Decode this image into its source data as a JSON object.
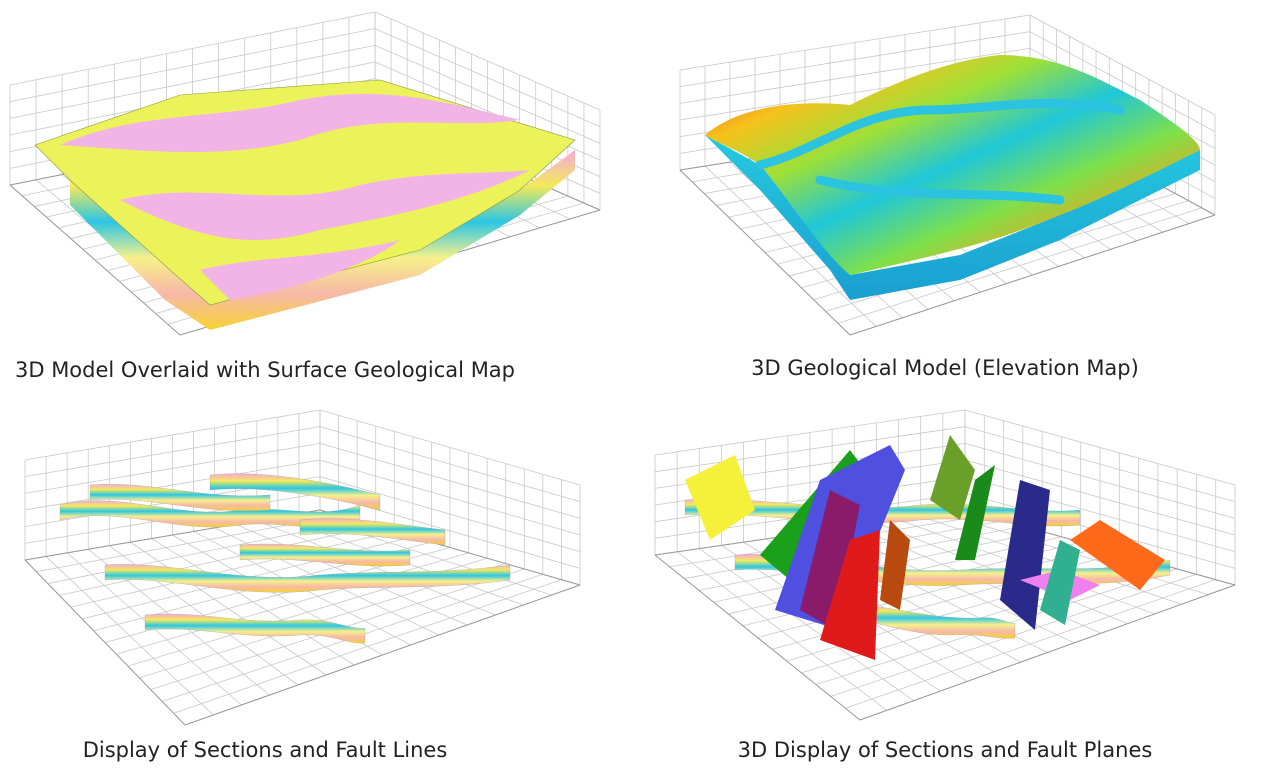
{
  "panels": [
    {
      "caption": "3D Model Overlaid with Surface Geological Map"
    },
    {
      "caption": "3D Geological Model (Elevation Map)"
    },
    {
      "caption": "Display of Sections and Fault Lines"
    },
    {
      "caption": "3D Display of Sections and Fault Planes"
    }
  ]
}
